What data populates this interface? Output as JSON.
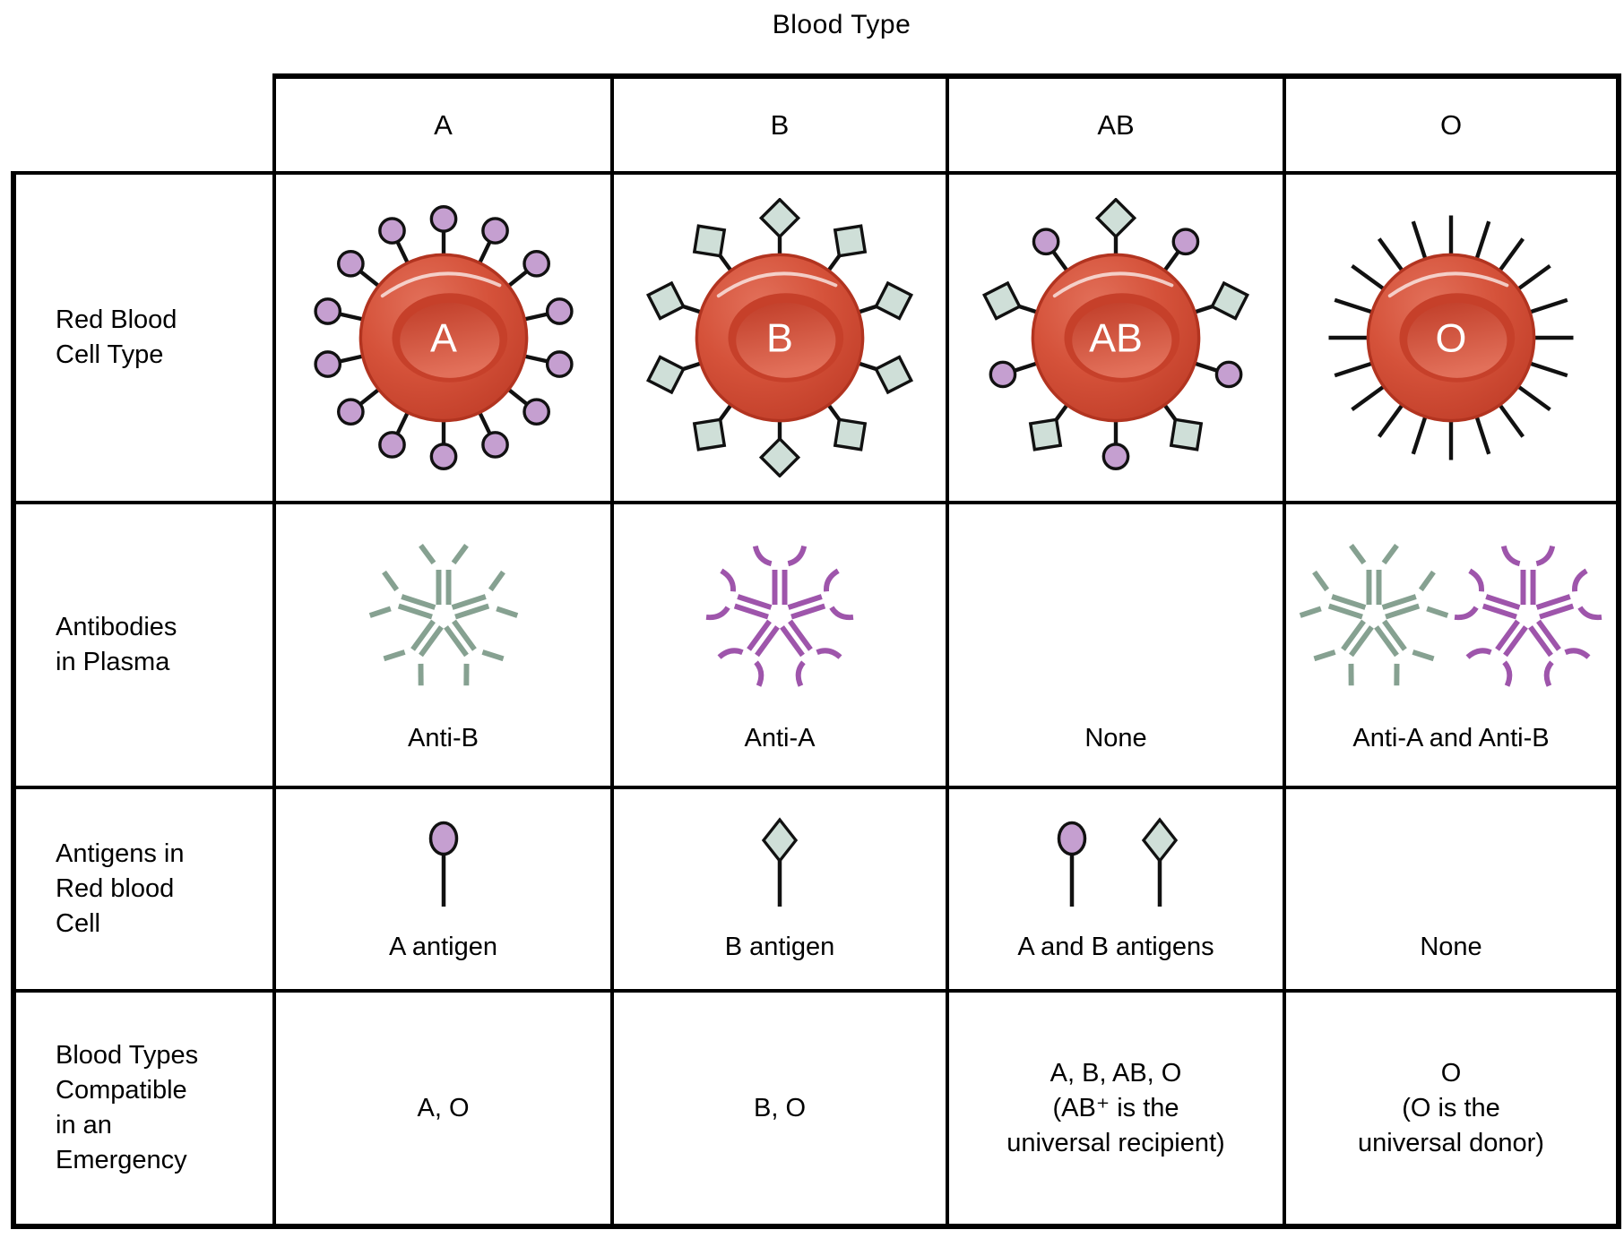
{
  "title": "Blood Type",
  "colors": {
    "a_antigen_purple": "#c59fd0",
    "b_antigen_green": "#cfdfd8",
    "antibody_green": "#86a191",
    "antibody_purple": "#9e55ab",
    "cell_red_light": "#e2705a",
    "cell_red_mid": "#d5523a",
    "cell_red_dark": "#c03d28",
    "cell_red_stroke": "#b23420",
    "cell_inner_dark": "#c6402a",
    "line_black": "#111111"
  },
  "row_labels": [
    {
      "id": "rbc",
      "label": "Red Blood\nCell Type"
    },
    {
      "id": "antibodies",
      "label": "Antibodies\nin Plasma"
    },
    {
      "id": "antigens",
      "label": "Antigens in\nRed blood\nCell"
    },
    {
      "id": "compatible",
      "label": "Blood Types\nCompatible\nin an\nEmergency"
    }
  ],
  "columns": [
    {
      "header": "A",
      "cell_label": "A",
      "rbc_antigens": "circle",
      "rbc_count": 14,
      "antibodies": [
        "green"
      ],
      "antibody_label": "Anti-B",
      "antigen_icons": [
        "circle"
      ],
      "antigen_label": "A antigen",
      "compatible": "A, O"
    },
    {
      "header": "B",
      "cell_label": "B",
      "rbc_antigens": "diamond",
      "rbc_count": 10,
      "antibodies": [
        "purple"
      ],
      "antibody_label": "Anti-A",
      "antigen_icons": [
        "diamond"
      ],
      "antigen_label": "B antigen",
      "compatible": "B, O"
    },
    {
      "header": "AB",
      "cell_label": "AB",
      "rbc_antigens": "mixed",
      "rbc_count": 10,
      "antibodies": [],
      "antibody_label": "None",
      "antigen_icons": [
        "circle",
        "diamond"
      ],
      "antigen_label": "A and B antigens",
      "compatible": "A, B, AB, O\n(AB⁺ is the\nuniversal recipient)"
    },
    {
      "header": "O",
      "cell_label": "O",
      "rbc_antigens": "none",
      "rbc_count": 20,
      "antibodies": [
        "green",
        "purple"
      ],
      "antibody_label": "Anti-A and Anti-B",
      "antigen_icons": [],
      "antigen_label": "None",
      "compatible": "O\n(O is the\nuniversal donor)"
    }
  ]
}
